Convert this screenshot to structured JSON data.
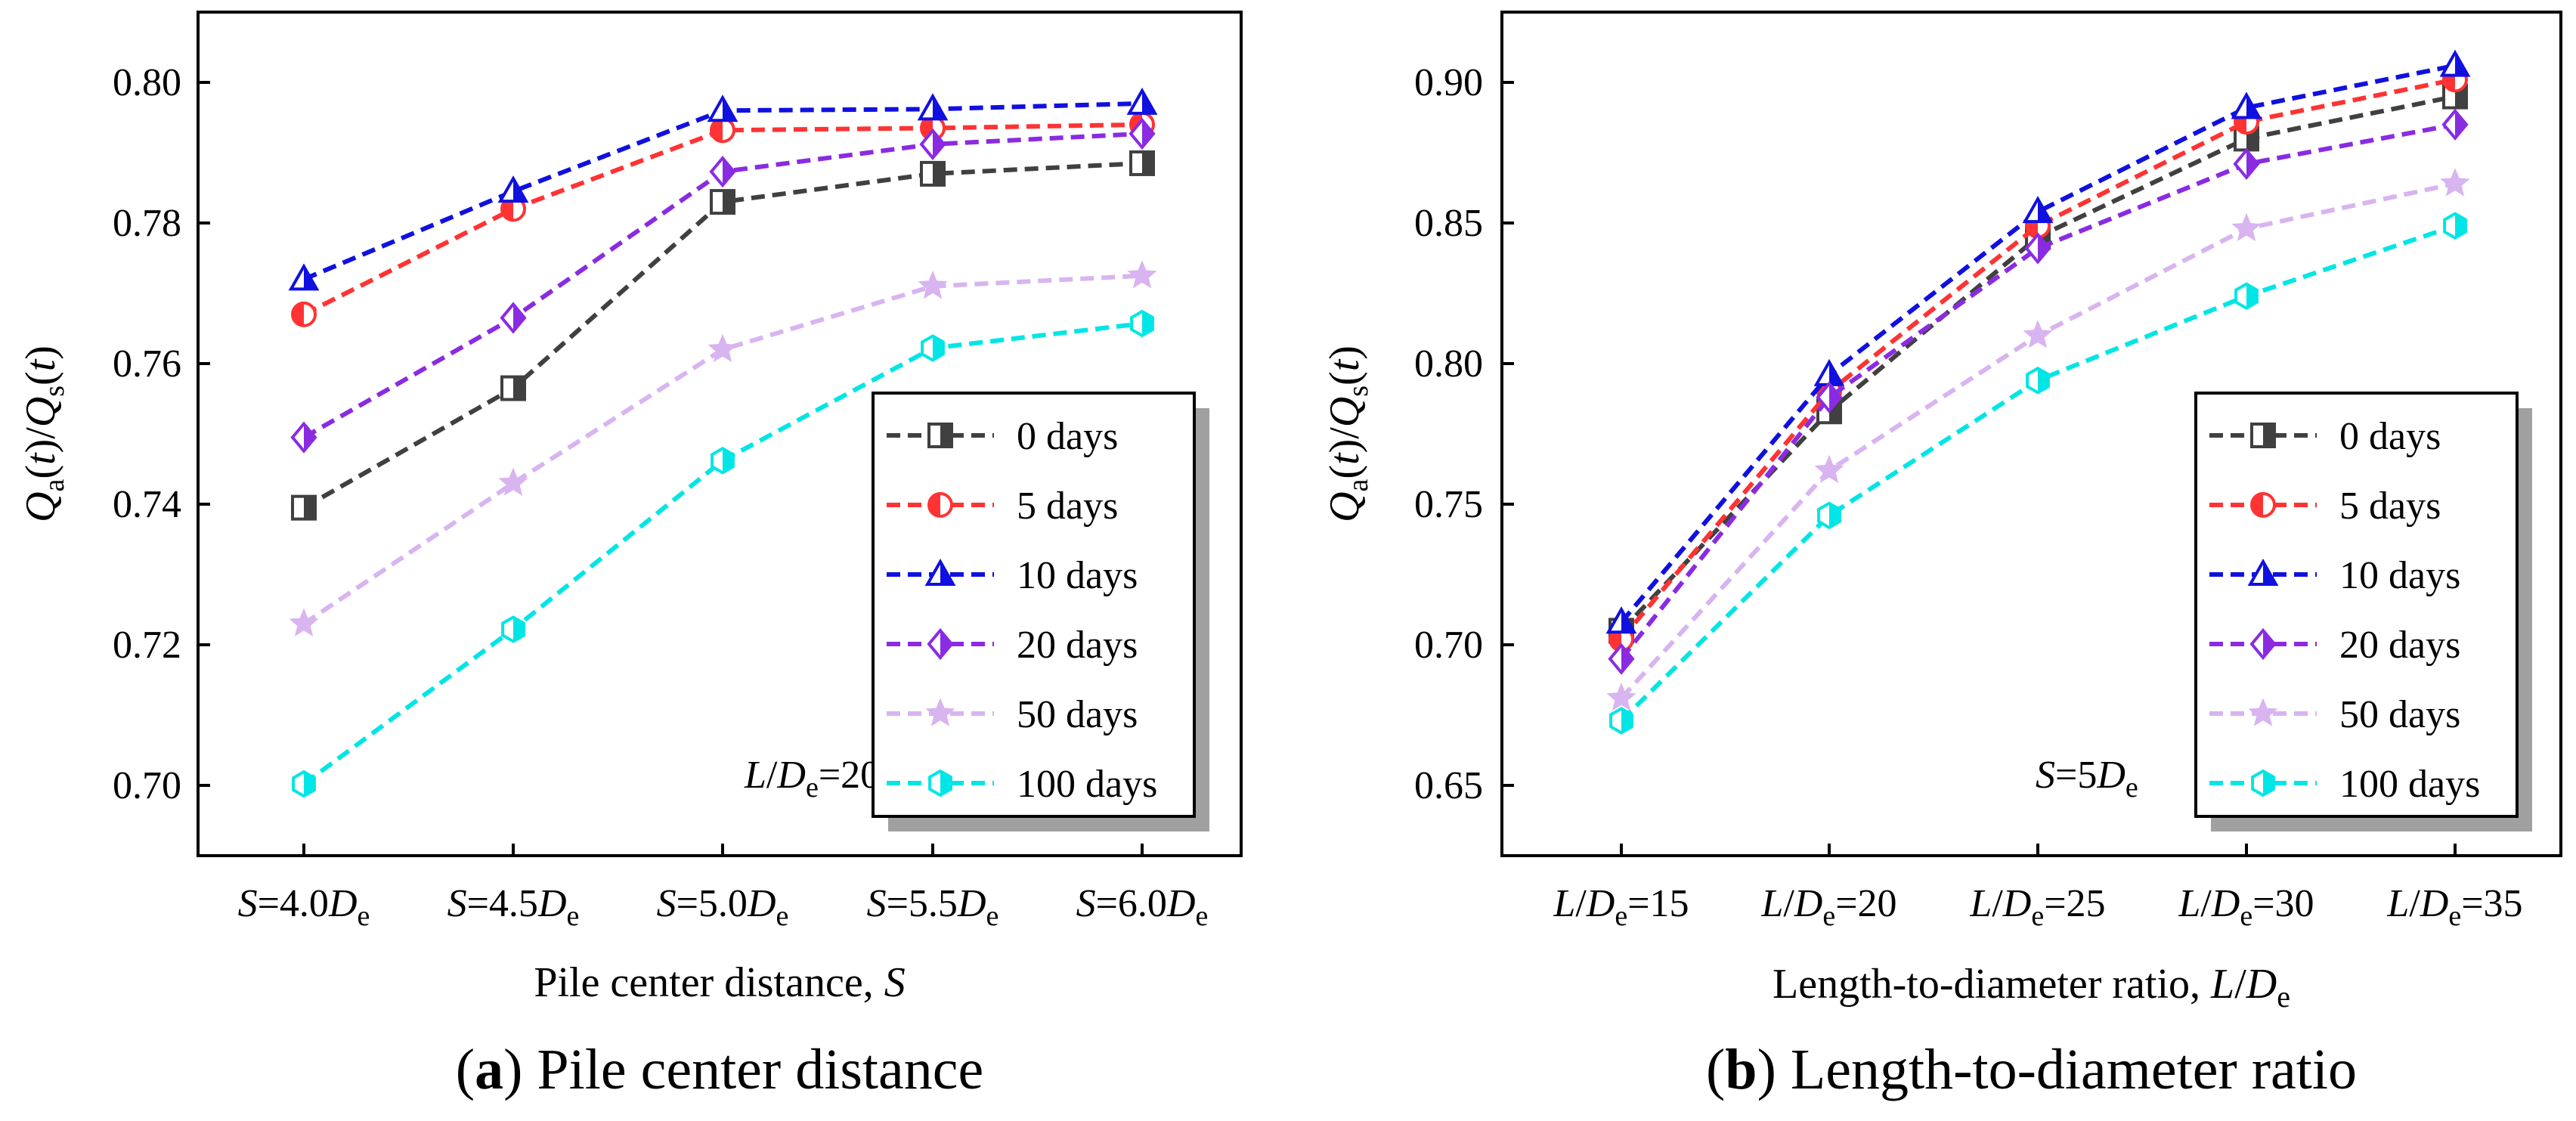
{
  "chart_data": [
    {
      "id": "a",
      "type": "line",
      "caption_letter": "(a)",
      "caption_text": " Pile center distance",
      "xlabel": "Pile center distance, ",
      "xlabel_var": "S",
      "ylabel": "Qa(t)/Qs(t)",
      "ylim": [
        0.69,
        0.81
      ],
      "yticks": [
        0.7,
        0.72,
        0.74,
        0.76,
        0.78,
        0.8
      ],
      "ytick_labels": [
        "0.70",
        "0.72",
        "0.74",
        "0.76",
        "0.78",
        "0.80"
      ],
      "categories": [
        {
          "pre": "S",
          "mid": "=4.0",
          "var": "D",
          "sub": "e",
          "post": ""
        },
        {
          "pre": "S",
          "mid": "=4.5",
          "var": "D",
          "sub": "e",
          "post": ""
        },
        {
          "pre": "S",
          "mid": "=5.0",
          "var": "D",
          "sub": "e",
          "post": ""
        },
        {
          "pre": "S",
          "mid": "=5.5",
          "var": "D",
          "sub": "e",
          "post": ""
        },
        {
          "pre": "S",
          "mid": "=6.0",
          "var": "D",
          "sub": "e",
          "post": ""
        }
      ],
      "annotation": {
        "var": "L",
        "slash": "/",
        "var2": "D",
        "sub": "e",
        "value": "=20"
      },
      "legend_position": "lower-right",
      "series": [
        {
          "name": "0 days",
          "color": "#404040",
          "marker": "square",
          "values": [
            0.7395,
            0.7565,
            0.783,
            0.787,
            0.7885
          ]
        },
        {
          "name": "5 days",
          "color": "#ff3333",
          "marker": "circle",
          "values": [
            0.767,
            0.782,
            0.7932,
            0.7935,
            0.794
          ]
        },
        {
          "name": "10 days",
          "color": "#1010e0",
          "marker": "triangle",
          "values": [
            0.772,
            0.7845,
            0.796,
            0.7962,
            0.797
          ]
        },
        {
          "name": "20 days",
          "color": "#8a2be2",
          "marker": "diamond",
          "values": [
            0.7495,
            0.7665,
            0.7873,
            0.7912,
            0.7927
          ]
        },
        {
          "name": "50 days",
          "color": "#d8b4f0",
          "marker": "star",
          "values": [
            0.723,
            0.743,
            0.762,
            0.771,
            0.7725
          ]
        },
        {
          "name": "100 days",
          "color": "#00e5e5",
          "marker": "hexagon",
          "values": [
            0.7002,
            0.7222,
            0.7462,
            0.7622,
            0.7657
          ]
        }
      ]
    },
    {
      "id": "b",
      "type": "line",
      "caption_letter": "(b)",
      "caption_text": " Length-to-diameter ratio",
      "xlabel": "Length-to-diameter ratio, ",
      "xlabel_var": "L",
      "xlabel_var2": "D",
      "xlabel_sub": "e",
      "ylabel": "Qa(t)/Qs(t)",
      "ylim": [
        0.625,
        0.925
      ],
      "yticks": [
        0.65,
        0.7,
        0.75,
        0.8,
        0.85,
        0.9
      ],
      "ytick_labels": [
        "0.65",
        "0.70",
        "0.75",
        "0.80",
        "0.85",
        "0.90"
      ],
      "categories": [
        {
          "pre": "L",
          "mid": "/",
          "var": "D",
          "sub": "e",
          "post": "=15"
        },
        {
          "pre": "L",
          "mid": "/",
          "var": "D",
          "sub": "e",
          "post": "=20"
        },
        {
          "pre": "L",
          "mid": "/",
          "var": "D",
          "sub": "e",
          "post": "=25"
        },
        {
          "pre": "L",
          "mid": "/",
          "var": "D",
          "sub": "e",
          "post": "=30"
        },
        {
          "pre": "L",
          "mid": "/",
          "var": "D",
          "sub": "e",
          "post": "=35"
        }
      ],
      "annotation": {
        "var": "S",
        "value": "=5",
        "var2": "D",
        "sub": "e"
      },
      "legend_position": "lower-right",
      "series": [
        {
          "name": "0 days",
          "color": "#404040",
          "marker": "square",
          "values": [
            0.705,
            0.783,
            0.845,
            0.88,
            0.895
          ]
        },
        {
          "name": "5 days",
          "color": "#ff3333",
          "marker": "circle",
          "values": [
            0.702,
            0.79,
            0.849,
            0.886,
            0.901
          ]
        },
        {
          "name": "10 days",
          "color": "#1010e0",
          "marker": "triangle",
          "values": [
            0.708,
            0.796,
            0.854,
            0.891,
            0.906
          ]
        },
        {
          "name": "20 days",
          "color": "#8a2be2",
          "marker": "diamond",
          "values": [
            0.695,
            0.788,
            0.841,
            0.871,
            0.885
          ]
        },
        {
          "name": "50 days",
          "color": "#d8b4f0",
          "marker": "star",
          "values": [
            0.681,
            0.762,
            0.81,
            0.848,
            0.864
          ]
        },
        {
          "name": "100 days",
          "color": "#00e5e5",
          "marker": "hexagon",
          "values": [
            0.673,
            0.746,
            0.794,
            0.824,
            0.849
          ]
        }
      ]
    }
  ]
}
